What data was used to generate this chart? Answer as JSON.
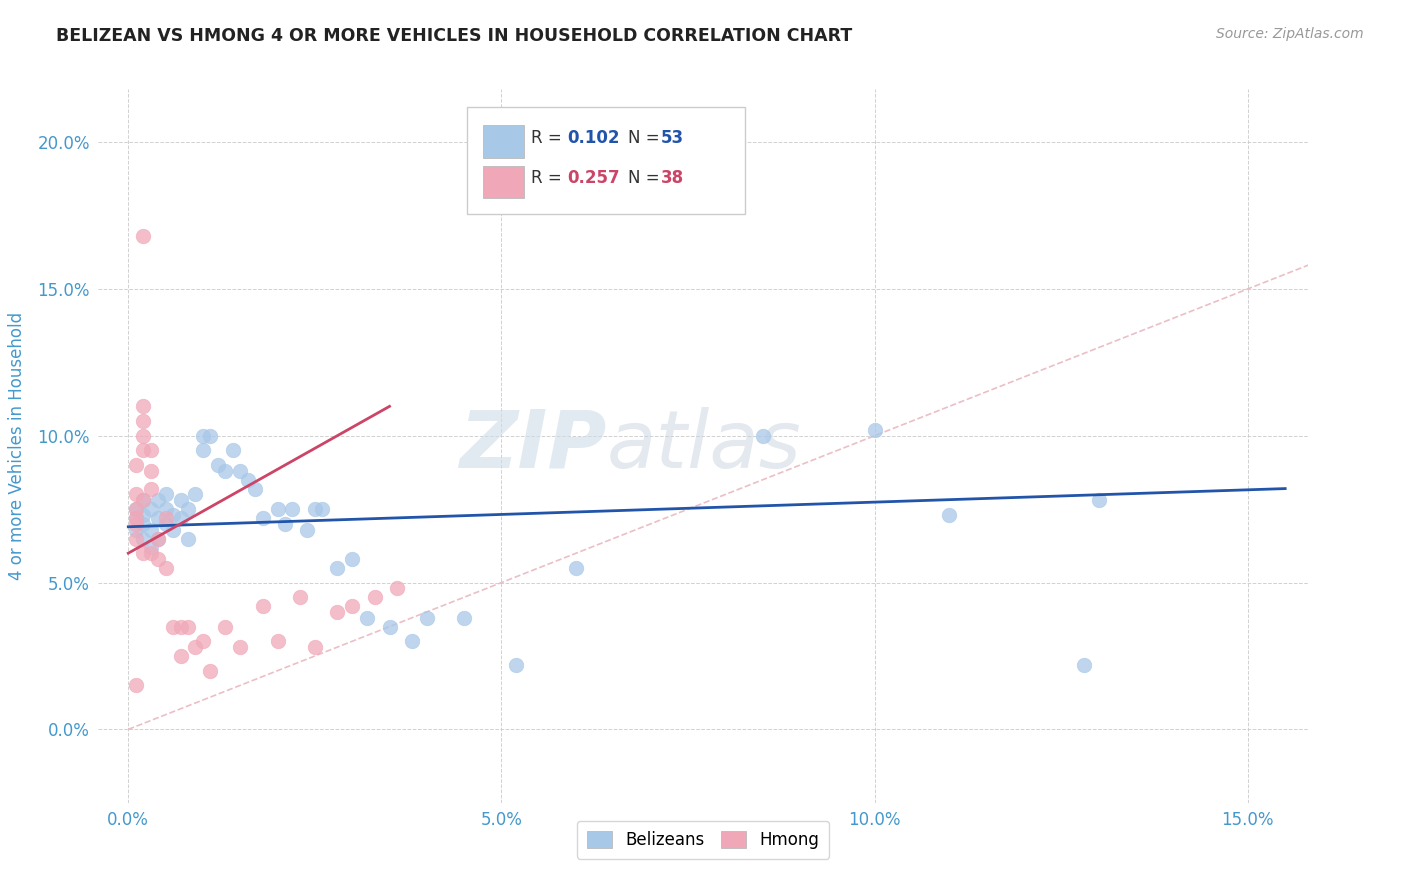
{
  "title": "BELIZEAN VS HMONG 4 OR MORE VEHICLES IN HOUSEHOLD CORRELATION CHART",
  "source": "Source: ZipAtlas.com",
  "xlabel_vals": [
    0.0,
    0.05,
    0.1,
    0.15
  ],
  "ylabel_vals": [
    0.0,
    0.05,
    0.1,
    0.15,
    0.2
  ],
  "xlim": [
    -0.004,
    0.158
  ],
  "ylim": [
    -0.025,
    0.218
  ],
  "ylabel": "4 or more Vehicles in Household",
  "blue_color": "#a8c8e8",
  "pink_color": "#f0a8b8",
  "blue_line_color": "#2255aa",
  "pink_line_color": "#cc4466",
  "diag_color": "#e8b8c0",
  "watermark_zip": "ZIP",
  "watermark_atlas": "atlas",
  "title_color": "#222222",
  "source_color": "#999999",
  "axis_label_color": "#4499cc",
  "tick_color": "#4499cc",
  "legend_r_color": "#333333",
  "belizean_x": [
    0.001,
    0.001,
    0.001,
    0.002,
    0.002,
    0.002,
    0.002,
    0.003,
    0.003,
    0.003,
    0.004,
    0.004,
    0.004,
    0.005,
    0.005,
    0.005,
    0.006,
    0.006,
    0.007,
    0.007,
    0.008,
    0.008,
    0.009,
    0.01,
    0.01,
    0.011,
    0.012,
    0.013,
    0.014,
    0.015,
    0.016,
    0.017,
    0.018,
    0.02,
    0.021,
    0.022,
    0.024,
    0.025,
    0.026,
    0.028,
    0.03,
    0.032,
    0.035,
    0.038,
    0.04,
    0.045,
    0.052,
    0.06,
    0.085,
    0.1,
    0.11,
    0.128,
    0.13
  ],
  "belizean_y": [
    0.075,
    0.068,
    0.072,
    0.07,
    0.073,
    0.065,
    0.078,
    0.075,
    0.068,
    0.062,
    0.072,
    0.078,
    0.065,
    0.08,
    0.075,
    0.07,
    0.068,
    0.073,
    0.072,
    0.078,
    0.075,
    0.065,
    0.08,
    0.1,
    0.095,
    0.1,
    0.09,
    0.088,
    0.095,
    0.088,
    0.085,
    0.082,
    0.072,
    0.075,
    0.07,
    0.075,
    0.068,
    0.075,
    0.075,
    0.055,
    0.058,
    0.038,
    0.035,
    0.03,
    0.038,
    0.038,
    0.022,
    0.055,
    0.1,
    0.102,
    0.073,
    0.022,
    0.078
  ],
  "hmong_x": [
    0.001,
    0.001,
    0.001,
    0.001,
    0.001,
    0.001,
    0.001,
    0.002,
    0.002,
    0.002,
    0.002,
    0.002,
    0.002,
    0.003,
    0.003,
    0.003,
    0.003,
    0.004,
    0.004,
    0.005,
    0.005,
    0.006,
    0.007,
    0.007,
    0.008,
    0.009,
    0.01,
    0.011,
    0.013,
    0.015,
    0.018,
    0.02,
    0.023,
    0.025,
    0.028,
    0.03,
    0.033,
    0.036
  ],
  "hmong_y": [
    0.075,
    0.07,
    0.065,
    0.08,
    0.09,
    0.072,
    0.015,
    0.078,
    0.095,
    0.1,
    0.105,
    0.11,
    0.06,
    0.095,
    0.088,
    0.082,
    0.06,
    0.065,
    0.058,
    0.072,
    0.055,
    0.035,
    0.035,
    0.025,
    0.035,
    0.028,
    0.03,
    0.02,
    0.035,
    0.028,
    0.042,
    0.03,
    0.045,
    0.028,
    0.04,
    0.042,
    0.045,
    0.048
  ],
  "hmong_outlier_x": [
    0.002
  ],
  "hmong_outlier_y": [
    0.168
  ]
}
